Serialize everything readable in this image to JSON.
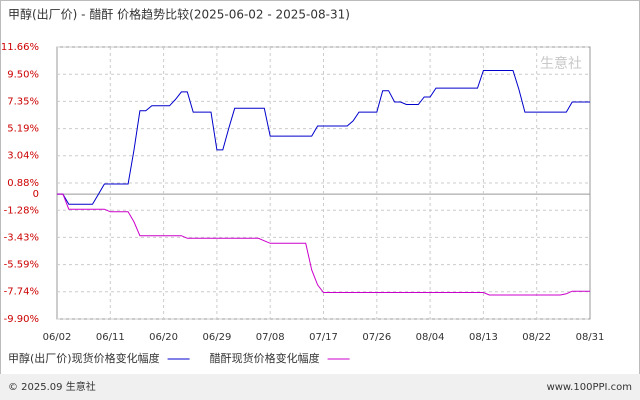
{
  "chart_data": {
    "type": "line",
    "title": "甲醇(出厂价) - 醋酐 价格趋势比较(2025-06-02 - 2025-08-31)",
    "categories": [
      "06/02",
      null,
      null,
      null,
      null,
      null,
      null,
      null,
      null,
      "06/11",
      null,
      null,
      null,
      null,
      null,
      null,
      null,
      null,
      "06/20",
      null,
      null,
      null,
      null,
      null,
      null,
      null,
      null,
      "06/29",
      null,
      null,
      null,
      null,
      null,
      null,
      null,
      null,
      "07/08",
      null,
      null,
      null,
      null,
      null,
      null,
      null,
      null,
      "07/17",
      null,
      null,
      null,
      null,
      null,
      null,
      null,
      null,
      "07/26",
      null,
      null,
      null,
      null,
      null,
      null,
      null,
      null,
      "08/04",
      null,
      null,
      null,
      null,
      null,
      null,
      null,
      null,
      "08/13",
      null,
      null,
      null,
      null,
      null,
      null,
      null,
      null,
      "08/22",
      null,
      null,
      null,
      null,
      null,
      null,
      null,
      null,
      "08/31"
    ],
    "series": [
      {
        "name": "甲醇(出厂价)现货价格变化幅度",
        "color": "#0000cc",
        "values": [
          0,
          0,
          -0.8,
          -0.8,
          -0.8,
          -0.8,
          -0.8,
          0,
          0.8,
          0.8,
          0.8,
          0.8,
          0.8,
          3.5,
          6.6,
          6.6,
          7.0,
          7.0,
          7.0,
          7.0,
          7.5,
          8.1,
          8.1,
          6.5,
          6.5,
          6.5,
          6.5,
          3.5,
          3.5,
          5.2,
          6.8,
          6.8,
          6.8,
          6.8,
          6.8,
          6.8,
          4.6,
          4.6,
          4.6,
          4.6,
          4.6,
          4.6,
          4.6,
          4.6,
          5.4,
          5.4,
          5.4,
          5.4,
          5.4,
          5.4,
          5.8,
          6.5,
          6.5,
          6.5,
          6.5,
          8.2,
          8.2,
          7.3,
          7.3,
          7.1,
          7.1,
          7.1,
          7.7,
          7.7,
          8.4,
          8.4,
          8.4,
          8.4,
          8.4,
          8.4,
          8.4,
          8.4,
          9.8,
          9.8,
          9.8,
          9.8,
          9.8,
          9.8,
          8.3,
          6.5,
          6.5,
          6.5,
          6.5,
          6.5,
          6.5,
          6.5,
          6.5,
          7.3,
          7.3,
          7.3,
          7.3
        ]
      },
      {
        "name": "醋酐现货价格变化幅度",
        "color": "#cc00cc",
        "values": [
          0,
          0,
          -1.2,
          -1.2,
          -1.2,
          -1.2,
          -1.2,
          -1.2,
          -1.2,
          -1.4,
          -1.4,
          -1.4,
          -1.4,
          -2.2,
          -3.3,
          -3.3,
          -3.3,
          -3.3,
          -3.3,
          -3.3,
          -3.3,
          -3.3,
          -3.5,
          -3.5,
          -3.5,
          -3.5,
          -3.5,
          -3.5,
          -3.5,
          -3.5,
          -3.5,
          -3.5,
          -3.5,
          -3.5,
          -3.5,
          -3.7,
          -3.9,
          -3.9,
          -3.9,
          -3.9,
          -3.9,
          -3.9,
          -3.9,
          -6.0,
          -7.2,
          -7.8,
          -7.8,
          -7.8,
          -7.8,
          -7.8,
          -7.8,
          -7.8,
          -7.8,
          -7.8,
          -7.8,
          -7.8,
          -7.8,
          -7.8,
          -7.8,
          -7.8,
          -7.8,
          -7.8,
          -7.8,
          -7.8,
          -7.8,
          -7.8,
          -7.8,
          -7.8,
          -7.8,
          -7.8,
          -7.8,
          -7.8,
          -7.8,
          -8.0,
          -8.0,
          -8.0,
          -8.0,
          -8.0,
          -8.0,
          -8.0,
          -8.0,
          -8.0,
          -8.0,
          -8.0,
          -8.0,
          -8.0,
          -7.9,
          -7.7,
          -7.7,
          -7.7,
          -7.7
        ]
      }
    ],
    "ylim": [
      -9.9,
      11.66
    ],
    "yticks": [
      {
        "value": 11.66,
        "label": "11.66%"
      },
      {
        "value": 9.5,
        "label": "9.50%"
      },
      {
        "value": 7.35,
        "label": "7.35%"
      },
      {
        "value": 5.19,
        "label": "5.19%"
      },
      {
        "value": 3.04,
        "label": "3.04%"
      },
      {
        "value": 0.88,
        "label": "0.88%"
      },
      0,
      {
        "value": -1.28,
        "label": "-1.28%"
      },
      {
        "value": -3.43,
        "label": "-3.43%"
      },
      {
        "value": -5.59,
        "label": "-5.59%"
      },
      {
        "value": -7.74,
        "label": "-7.74%"
      },
      {
        "value": -9.9,
        "label": "-9.90%"
      }
    ],
    "grid": true,
    "watermark": "生意社",
    "footer_left": "© 2025.09 生意社",
    "footer_right": "www.100PPI.com"
  }
}
